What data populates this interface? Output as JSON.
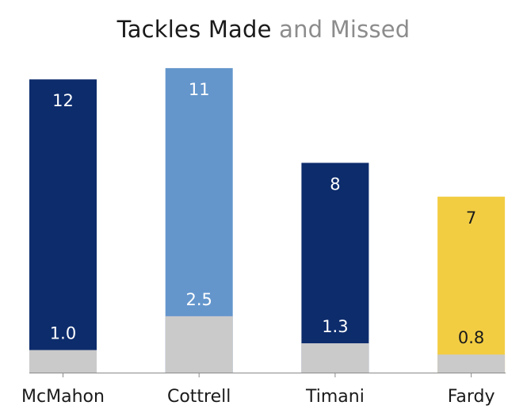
{
  "chart_data": {
    "type": "bar",
    "stacked": true,
    "title": "Tackles Made",
    "subtitle": "and Missed",
    "categories": [
      "McMahon",
      "Cottrell",
      "Timani",
      "Fardy"
    ],
    "series": [
      {
        "values": [
          1.0,
          2.5,
          1.3,
          0.8
        ],
        "labels": [
          "1.0",
          "2.5",
          "1.3",
          "0.8"
        ]
      },
      {
        "values": [
          12,
          11,
          8,
          7
        ],
        "labels": [
          "12",
          "11",
          "8",
          "7"
        ]
      }
    ],
    "colors": {
      "missed": "#cacaca",
      "made": [
        "#0d2c6c",
        "#6496cc",
        "#0d2c6c",
        "#f2cd42"
      ],
      "label_light": "#ffffff",
      "label_dark": "#1a1a1a"
    },
    "ylim": [
      0,
      13.3
    ],
    "grid": false,
    "legend": "none"
  }
}
